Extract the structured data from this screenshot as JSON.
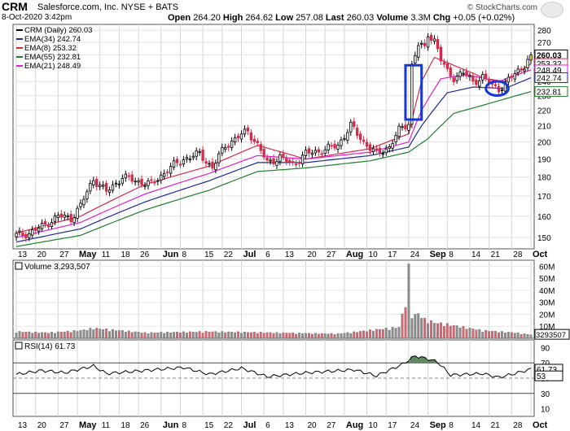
{
  "header": {
    "ticker": "CRM",
    "company": "Salesforce.com, Inc.  NYSE + BATS",
    "as_of": "8-Oct-2020 3:42pm",
    "open_label": "Open",
    "open": "264.20",
    "high_label": "High",
    "high": "264.62",
    "low_label": "Low",
    "low": "257.08",
    "last_label": "Last",
    "last": "260.03",
    "volume_label": "Volume",
    "volume": "3.3M",
    "chg_label": "Chg",
    "chg": "+0.05 (+0.02%)",
    "brand": "© StockCharts.com"
  },
  "colors": {
    "up": "#ffffff",
    "down": "#d22c4b",
    "ema34": "#1f2a8f",
    "ema8": "#d22c4b",
    "ema55": "#1e7f2a",
    "ema21": "#e020c8",
    "volume_up": "#8c8c8c",
    "volume_down": "#d9636f",
    "rsi_fill": "#5e8a5e",
    "annotation": "#1437d6"
  },
  "chart_data": [
    {
      "type": "candlestick",
      "title": "CRM (Daily) 260.03",
      "scale": "log",
      "ylim": [
        145,
        285
      ],
      "yticks": [
        150,
        160,
        170,
        180,
        190,
        200,
        210,
        220,
        230,
        240,
        250,
        260,
        270,
        280
      ],
      "x_labels": [
        "13",
        "20",
        "27",
        "May",
        "11",
        "18",
        "26",
        "Jun",
        "8",
        "15",
        "22",
        "Jul",
        "6",
        "13",
        "20",
        "27",
        "Aug",
        "10",
        "17",
        "24",
        "Sep",
        "8",
        "14",
        "21",
        "28",
        "Oct"
      ],
      "legend": [
        {
          "key": "price",
          "label": "CRM (Daily) 260.03"
        },
        {
          "key": "ema34",
          "label": "EMA(34) 242.74"
        },
        {
          "key": "ema8",
          "label": "EMA(8) 253.32"
        },
        {
          "key": "ema55",
          "label": "EMA(55) 232.81"
        },
        {
          "key": "ema21",
          "label": "EMA(21) 248.49"
        }
      ],
      "price_tags": [
        {
          "value": 260.03,
          "label": "260.03",
          "bold": true
        },
        {
          "value": 253.32,
          "label": "253.32"
        },
        {
          "value": 248.49,
          "label": "248.49"
        },
        {
          "value": 242.74,
          "label": "242.74"
        },
        {
          "value": 232.81,
          "label": "232.81"
        }
      ],
      "anchors": [
        [
          0,
          151
        ],
        [
          4,
          152
        ],
        [
          8,
          155
        ],
        [
          13,
          160
        ],
        [
          17,
          159
        ],
        [
          20,
          165
        ],
        [
          24,
          179
        ],
        [
          28,
          172
        ],
        [
          33,
          180
        ],
        [
          37,
          178
        ],
        [
          42,
          176
        ],
        [
          47,
          184
        ],
        [
          52,
          190
        ],
        [
          57,
          193
        ],
        [
          61,
          185
        ],
        [
          65,
          198
        ],
        [
          69,
          203
        ],
        [
          72,
          207
        ],
        [
          75,
          198
        ],
        [
          78,
          188
        ],
        [
          82,
          191
        ],
        [
          86,
          187
        ],
        [
          90,
          193
        ],
        [
          95,
          195
        ],
        [
          100,
          198
        ],
        [
          104,
          210
        ],
        [
          108,
          200
        ],
        [
          112,
          193
        ],
        [
          116,
          197
        ],
        [
          119,
          207
        ],
        [
          122,
          212
        ],
        [
          123,
          252
        ],
        [
          125,
          268
        ],
        [
          127,
          265
        ],
        [
          128,
          277
        ],
        [
          130,
          272
        ],
        [
          132,
          256
        ],
        [
          134,
          247
        ],
        [
          136,
          243
        ],
        [
          139,
          246
        ],
        [
          142,
          240
        ],
        [
          145,
          243
        ],
        [
          148,
          237
        ],
        [
          150,
          235
        ],
        [
          152,
          238
        ],
        [
          155,
          246
        ],
        [
          158,
          252
        ],
        [
          160,
          260
        ]
      ],
      "ema_series": [
        {
          "key": "ema8",
          "values": [
            [
              0,
              152
            ],
            [
              20,
              160
            ],
            [
              40,
              176
            ],
            [
              60,
              186
            ],
            [
              75,
              198
            ],
            [
              90,
              190
            ],
            [
              110,
              196
            ],
            [
              122,
              205
            ],
            [
              126,
              240
            ],
            [
              130,
              258
            ],
            [
              136,
              252
            ],
            [
              146,
              242
            ],
            [
              152,
              240
            ],
            [
              160,
              253
            ]
          ]
        },
        {
          "key": "ema21",
          "values": [
            [
              0,
              150
            ],
            [
              20,
              157
            ],
            [
              40,
              171
            ],
            [
              60,
              182
            ],
            [
              75,
              192
            ],
            [
              90,
              190
            ],
            [
              110,
              194
            ],
            [
              122,
              200
            ],
            [
              126,
              220
            ],
            [
              132,
              242
            ],
            [
              140,
              245
            ],
            [
              150,
              240
            ],
            [
              160,
              248.5
            ]
          ]
        },
        {
          "key": "ema34",
          "values": [
            [
              0,
              148
            ],
            [
              20,
              154
            ],
            [
              40,
              167
            ],
            [
              60,
              178
            ],
            [
              75,
              188
            ],
            [
              90,
              188
            ],
            [
              110,
              192
            ],
            [
              122,
              197
            ],
            [
              126,
              210
            ],
            [
              134,
              232
            ],
            [
              142,
              236
            ],
            [
              152,
              235
            ],
            [
              160,
              242.7
            ]
          ]
        },
        {
          "key": "ema55",
          "values": [
            [
              0,
              146
            ],
            [
              20,
              151
            ],
            [
              40,
              163
            ],
            [
              60,
              173
            ],
            [
              75,
              183
            ],
            [
              90,
              185
            ],
            [
              110,
              189
            ],
            [
              122,
              194
            ],
            [
              128,
              202
            ],
            [
              136,
              218
            ],
            [
              146,
              224
            ],
            [
              160,
              232.8
            ]
          ]
        }
      ],
      "annotations": [
        {
          "shape": "rectangle",
          "from": [
            121,
            214
          ],
          "to": [
            126,
            252
          ]
        },
        {
          "shape": "ellipse",
          "center": [
            149.5,
            235
          ],
          "radius": [
            3.5,
            5
          ]
        }
      ]
    },
    {
      "type": "bar",
      "title": "Volume 3,293,507",
      "ylim": [
        0,
        65
      ],
      "unit": "M",
      "yticks": [
        10,
        20,
        30,
        40,
        50,
        60
      ],
      "ytick_labels": [
        "10M",
        "20M",
        "30M",
        "40M",
        "50M",
        "60M"
      ],
      "last_tag": "3293507",
      "volume_anchors": [
        [
          0,
          6
        ],
        [
          10,
          5
        ],
        [
          20,
          7
        ],
        [
          24,
          9
        ],
        [
          40,
          5
        ],
        [
          60,
          6
        ],
        [
          80,
          5
        ],
        [
          100,
          4
        ],
        [
          119,
          10
        ],
        [
          121,
          32
        ],
        [
          122,
          62
        ],
        [
          123,
          20
        ],
        [
          125,
          22
        ],
        [
          127,
          17
        ],
        [
          130,
          14
        ],
        [
          135,
          12
        ],
        [
          145,
          7
        ],
        [
          155,
          5
        ],
        [
          160,
          3.3
        ]
      ]
    },
    {
      "type": "line",
      "title": "RSI(14) 61.73",
      "ylim": [
        0,
        100
      ],
      "yticks": [
        10,
        30,
        50,
        70,
        90
      ],
      "reference_lines": [
        70,
        50,
        30
      ],
      "last_tags": [
        {
          "value": 61.73,
          "label": "61.73"
        },
        {
          "value": 53,
          "label": "53"
        }
      ],
      "rsi_anchors": [
        [
          0,
          55
        ],
        [
          8,
          60
        ],
        [
          15,
          57
        ],
        [
          24,
          66
        ],
        [
          28,
          56
        ],
        [
          40,
          60
        ],
        [
          52,
          64
        ],
        [
          60,
          55
        ],
        [
          70,
          63
        ],
        [
          78,
          52
        ],
        [
          90,
          57
        ],
        [
          105,
          61
        ],
        [
          112,
          53
        ],
        [
          120,
          68
        ],
        [
          124,
          79
        ],
        [
          128,
          75
        ],
        [
          131,
          71
        ],
        [
          135,
          54
        ],
        [
          145,
          56
        ],
        [
          150,
          51
        ],
        [
          155,
          56
        ],
        [
          160,
          61.73
        ]
      ]
    }
  ],
  "x_axis_bottom": [
    "13",
    "20",
    "27",
    "May",
    "11",
    "18",
    "26",
    "Jun",
    "8",
    "15",
    "22",
    "Jul",
    "6",
    "13",
    "20",
    "27",
    "Aug",
    "10",
    "17",
    "24",
    "Sep",
    "8",
    "14",
    "21",
    "28",
    "Oct"
  ]
}
